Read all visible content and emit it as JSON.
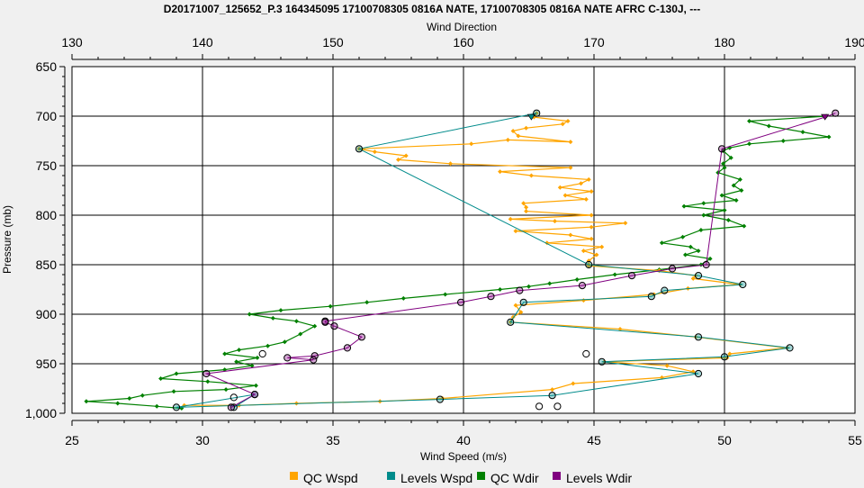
{
  "chart_data": {
    "type": "line",
    "title": "D20171007_125652_P.3 164345095 17100708305 0816A NATE, 17100708305 0816A NATE AFRC C-130J, ---",
    "x_bottom": {
      "label": "Wind Speed (m/s)",
      "range": [
        25,
        55
      ],
      "ticks": [
        25,
        30,
        35,
        40,
        45,
        50,
        55
      ]
    },
    "x_top": {
      "label": "Wind Direction",
      "range": [
        130,
        190
      ],
      "ticks": [
        130,
        140,
        150,
        160,
        170,
        180,
        190
      ]
    },
    "y": {
      "label": "Pressure (mb)",
      "range": [
        650,
        1000
      ],
      "inverted": true,
      "ticks": [
        650,
        700,
        750,
        800,
        850,
        900,
        950,
        1000
      ]
    },
    "grid": true,
    "legend_position": "bottom",
    "colors": {
      "qc_wspd": "#FFA500",
      "levels_wspd": "#008B8B",
      "qc_wdir": "#008000",
      "levels_wdir": "#800080",
      "open_circle": "#000000"
    },
    "series": [
      {
        "name": "QC Wspd",
        "axis": "x_bottom",
        "points": [
          [
            44.8,
            850
          ],
          [
            44.8,
            846
          ],
          [
            45.1,
            840
          ],
          [
            44.6,
            836
          ],
          [
            45.3,
            832
          ],
          [
            43.2,
            828
          ],
          [
            44.9,
            824
          ],
          [
            44.1,
            820
          ],
          [
            42.0,
            816
          ],
          [
            44.9,
            812
          ],
          [
            46.2,
            808
          ],
          [
            43.5,
            806
          ],
          [
            41.8,
            804
          ],
          [
            44.9,
            800
          ],
          [
            42.4,
            796
          ],
          [
            42.4,
            792
          ],
          [
            42.3,
            788
          ],
          [
            44.7,
            784
          ],
          [
            43.9,
            780
          ],
          [
            44.9,
            776
          ],
          [
            43.7,
            772
          ],
          [
            44.5,
            768
          ],
          [
            44.8,
            764
          ],
          [
            42.6,
            760
          ],
          [
            41.4,
            756
          ],
          [
            44.1,
            752
          ],
          [
            39.5,
            748
          ],
          [
            37.5,
            744
          ],
          [
            37.8,
            740
          ],
          [
            36.6,
            736
          ],
          [
            36.0,
            733
          ],
          [
            40.3,
            728
          ],
          [
            41.7,
            724
          ],
          [
            44.1,
            726
          ],
          [
            42.1,
            720
          ],
          [
            41.9,
            715
          ],
          [
            42.4,
            712
          ],
          [
            43.8,
            708
          ],
          [
            44.0,
            705
          ],
          [
            42.7,
            701
          ],
          [
            42.8,
            697
          ],
          [
            44.8,
            851
          ],
          [
            47.5,
            856
          ],
          [
            48.9,
            861
          ],
          [
            48.8,
            864
          ],
          [
            50.6,
            870
          ],
          [
            48.6,
            874
          ],
          [
            47.3,
            880
          ],
          [
            44.6,
            886
          ],
          [
            42.0,
            891
          ],
          [
            42.2,
            898
          ],
          [
            41.9,
            903
          ],
          [
            41.8,
            908
          ],
          [
            46.0,
            915
          ],
          [
            48.9,
            923
          ],
          [
            52.4,
            934
          ],
          [
            50.2,
            940
          ],
          [
            50.1,
            944
          ],
          [
            45.4,
            948
          ],
          [
            47.8,
            952
          ],
          [
            48.8,
            958
          ],
          [
            47.6,
            964
          ],
          [
            44.2,
            970
          ],
          [
            43.4,
            976
          ],
          [
            39.2,
            985
          ],
          [
            36.8,
            988
          ],
          [
            33.6,
            990
          ],
          [
            31.4,
            992
          ],
          [
            29.3,
            992
          ]
        ]
      },
      {
        "name": "Levels Wspd",
        "axis": "x_bottom",
        "points": [
          [
            42.6,
            701
          ],
          [
            42.8,
            697
          ],
          [
            36.0,
            733
          ],
          [
            44.8,
            850
          ],
          [
            49.0,
            861
          ],
          [
            50.7,
            870
          ],
          [
            47.7,
            876
          ],
          [
            47.2,
            882
          ],
          [
            42.3,
            888
          ],
          [
            41.8,
            908
          ],
          [
            49.0,
            923
          ],
          [
            52.5,
            934
          ],
          [
            50.0,
            943
          ],
          [
            45.3,
            948
          ],
          [
            49.0,
            960
          ],
          [
            43.4,
            982
          ],
          [
            39.1,
            986
          ],
          [
            29.0,
            994
          ],
          [
            32.0,
            981
          ],
          [
            31.2,
            994
          ]
        ]
      },
      {
        "name": "QC Wdir",
        "axis": "x_top",
        "points": [
          [
            187.8,
            700
          ],
          [
            181.9,
            705
          ],
          [
            183.4,
            710
          ],
          [
            186.0,
            716
          ],
          [
            188.0,
            721
          ],
          [
            184.5,
            725
          ],
          [
            181.9,
            728
          ],
          [
            180.4,
            732
          ],
          [
            179.9,
            735
          ],
          [
            180.5,
            742
          ],
          [
            179.9,
            748
          ],
          [
            180.0,
            752
          ],
          [
            179.5,
            757
          ],
          [
            181.2,
            764
          ],
          [
            180.7,
            770
          ],
          [
            181.3,
            775
          ],
          [
            179.8,
            780
          ],
          [
            180.9,
            785
          ],
          [
            178.4,
            788
          ],
          [
            176.9,
            791
          ],
          [
            180.0,
            795
          ],
          [
            178.4,
            800
          ],
          [
            180.3,
            805
          ],
          [
            181.5,
            811
          ],
          [
            178.2,
            815
          ],
          [
            176.8,
            822
          ],
          [
            175.2,
            828
          ],
          [
            177.4,
            832
          ],
          [
            178.0,
            836
          ],
          [
            177.0,
            840
          ],
          [
            178.9,
            844
          ],
          [
            178.2,
            850
          ],
          [
            175.0,
            855
          ],
          [
            171.6,
            860
          ],
          [
            168.7,
            865
          ],
          [
            166.6,
            869
          ],
          [
            165.0,
            872
          ],
          [
            162.8,
            875
          ],
          [
            158.6,
            880
          ],
          [
            155.4,
            884
          ],
          [
            152.6,
            888
          ],
          [
            149.8,
            892
          ],
          [
            146.0,
            896
          ],
          [
            143.6,
            900
          ],
          [
            145.4,
            904
          ],
          [
            147.2,
            907
          ],
          [
            148.6,
            912
          ],
          [
            147.5,
            920
          ],
          [
            146.3,
            928
          ],
          [
            145.0,
            932
          ],
          [
            142.8,
            936
          ],
          [
            141.7,
            940
          ],
          [
            144.2,
            944
          ],
          [
            142.6,
            948
          ],
          [
            143.8,
            952
          ],
          [
            141.7,
            956
          ],
          [
            138.0,
            960
          ],
          [
            136.8,
            965
          ],
          [
            140.4,
            968
          ],
          [
            144.1,
            972
          ],
          [
            141.8,
            976
          ],
          [
            137.8,
            978
          ],
          [
            135.4,
            982
          ],
          [
            134.4,
            985
          ],
          [
            131.1,
            988
          ],
          [
            133.5,
            990
          ],
          [
            136.5,
            993
          ],
          [
            138.4,
            995
          ]
        ]
      },
      {
        "name": "Levels Wdir",
        "axis": "x_top",
        "points": [
          [
            188.5,
            697
          ],
          [
            187.7,
            701
          ],
          [
            179.8,
            733
          ],
          [
            178.6,
            850
          ],
          [
            176.0,
            854
          ],
          [
            172.9,
            861
          ],
          [
            169.1,
            871
          ],
          [
            164.3,
            876
          ],
          [
            162.1,
            882
          ],
          [
            159.8,
            888
          ],
          [
            149.4,
            907
          ],
          [
            149.4,
            908
          ],
          [
            150.1,
            912
          ],
          [
            152.2,
            923
          ],
          [
            151.1,
            934
          ],
          [
            148.6,
            942
          ],
          [
            146.5,
            944
          ],
          [
            148.5,
            946
          ],
          [
            140.3,
            960
          ],
          [
            144.0,
            981
          ],
          [
            142.2,
            994
          ]
        ]
      },
      {
        "name": "",
        "axis": "x_bottom",
        "style": "open-circles",
        "points": [
          [
            32.3,
            940
          ],
          [
            44.7,
            940
          ],
          [
            42.9,
            993
          ],
          [
            43.6,
            993
          ],
          [
            31.2,
            984
          ]
        ]
      }
    ]
  },
  "legend": [
    {
      "label": "QC Wspd",
      "color": "#FFA500"
    },
    {
      "label": "Levels Wspd",
      "color": "#008B8B"
    },
    {
      "label": "QC Wdir",
      "color": "#008000"
    },
    {
      "label": "Levels Wdir",
      "color": "#800080"
    }
  ]
}
